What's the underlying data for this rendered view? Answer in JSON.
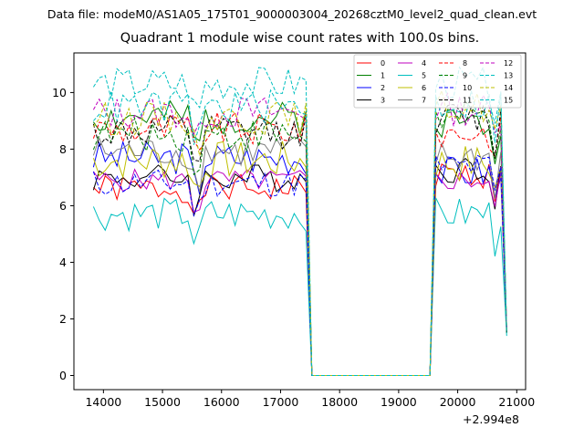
{
  "file_label": "Data file: modeM0/AS1A05_175T01_9000003004_20268cztM0_level2_quad_clean.evt",
  "chart_data": {
    "type": "line",
    "title": "Quadrant 1 module wise count rates with 100.0s bins.",
    "xlabel": "",
    "ylabel": "",
    "x_offset_label": "+2.994e8",
    "xlim": [
      13500,
      21150
    ],
    "ylim": [
      -0.5,
      11.4
    ],
    "xticks": [
      14000,
      15000,
      16000,
      17000,
      18000,
      19000,
      20000,
      21000
    ],
    "xtick_labels": [
      "14000",
      "15000",
      "16000",
      "17000",
      "18000",
      "19000",
      "20000",
      "21000"
    ],
    "yticks": [
      0,
      2,
      4,
      6,
      8,
      10
    ],
    "ytick_labels": [
      "0",
      "2",
      "4",
      "6",
      "8",
      "10"
    ],
    "grid": false,
    "legend_position": "upper-right",
    "legend_columns": 4,
    "segments": {
      "on1": {
        "start": 13830,
        "end": 17430,
        "step": 100
      },
      "gap": [
        17630,
        19530
      ],
      "on2": {
        "start": 19630,
        "end": 20730,
        "step": 100
      },
      "end_x": 20830
    },
    "series": [
      {
        "name": "0",
        "color": "#ff0000",
        "dash": "solid",
        "mean": 6.6,
        "amp": 0.25,
        "mean2": 7.1,
        "end": 1.6,
        "seed": 1
      },
      {
        "name": "1",
        "color": "#008000",
        "dash": "solid",
        "mean": 9.1,
        "amp": 0.3,
        "mean2": 9.0,
        "end": 1.5,
        "seed": 2
      },
      {
        "name": "2",
        "color": "#0000ff",
        "dash": "solid",
        "mean": 7.7,
        "amp": 0.3,
        "mean2": 7.2,
        "end": 1.5,
        "seed": 3
      },
      {
        "name": "3",
        "color": "#000000",
        "dash": "solid",
        "mean": 7.0,
        "amp": 0.25,
        "mean2": 7.3,
        "end": 1.6,
        "seed": 4
      },
      {
        "name": "4",
        "color": "#bf00bf",
        "dash": "solid",
        "mean": 6.9,
        "amp": 0.2,
        "mean2": 6.9,
        "end": 1.5,
        "seed": 5
      },
      {
        "name": "5",
        "color": "#00bfbf",
        "dash": "solid",
        "mean": 5.7,
        "amp": 0.3,
        "mean2": 5.7,
        "end": 1.4,
        "seed": 6
      },
      {
        "name": "6",
        "color": "#bfbf00",
        "dash": "solid",
        "mean": 7.6,
        "amp": 0.35,
        "mean2": 7.5,
        "end": 1.5,
        "seed": 7
      },
      {
        "name": "7",
        "color": "#808080",
        "dash": "solid",
        "mean": 7.9,
        "amp": 0.3,
        "mean2": 7.7,
        "end": 1.5,
        "seed": 8
      },
      {
        "name": "8",
        "color": "#ff0000",
        "dash": "dashed",
        "mean": 8.7,
        "amp": 0.3,
        "mean2": 8.6,
        "end": 1.6,
        "seed": 9
      },
      {
        "name": "9",
        "color": "#008000",
        "dash": "dashed",
        "mean": 8.5,
        "amp": 0.3,
        "mean2": 9.1,
        "end": 1.5,
        "seed": 10
      },
      {
        "name": "10",
        "color": "#0000ff",
        "dash": "dashed",
        "mean": 6.8,
        "amp": 0.25,
        "mean2": 7.4,
        "end": 1.6,
        "seed": 11
      },
      {
        "name": "11",
        "color": "#000000",
        "dash": "dashed",
        "mean": 8.6,
        "amp": 0.3,
        "mean2": 9.1,
        "end": 1.5,
        "seed": 12
      },
      {
        "name": "12",
        "color": "#bf00bf",
        "dash": "dashed",
        "mean": 9.3,
        "amp": 0.3,
        "mean2": 9.4,
        "end": 1.6,
        "seed": 13
      },
      {
        "name": "13",
        "color": "#00bfbf",
        "dash": "dashed",
        "mean": 10.3,
        "amp": 0.3,
        "mean2": 10.3,
        "end": 1.5,
        "seed": 14
      },
      {
        "name": "14",
        "color": "#bfbf00",
        "dash": "dashed",
        "mean": 9.1,
        "amp": 0.3,
        "mean2": 9.5,
        "end": 1.6,
        "seed": 15
      },
      {
        "name": "15",
        "color": "#00bfbf",
        "dash": "dashed",
        "mean": 9.5,
        "amp": 0.3,
        "mean2": 9.6,
        "end": 1.5,
        "seed": 16
      }
    ]
  }
}
